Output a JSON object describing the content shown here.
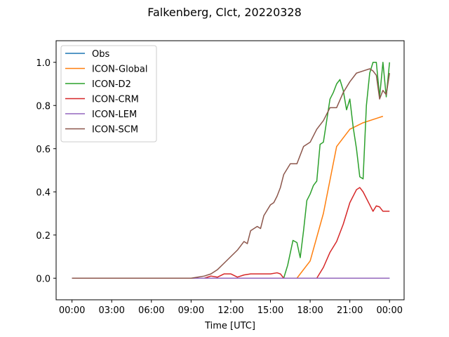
{
  "chart_data": {
    "type": "line",
    "title": "Falkenberg, Clct, 20220328",
    "xlabel": "Time [UTC]",
    "ylabel": "",
    "xlim_hours": [
      -1.2,
      25.1
    ],
    "ylim": [
      -0.1,
      1.1
    ],
    "x_ticks": [
      0,
      3,
      6,
      9,
      12,
      15,
      18,
      21,
      24
    ],
    "x_tick_labels": [
      "00:00",
      "03:00",
      "06:00",
      "09:00",
      "12:00",
      "15:00",
      "18:00",
      "21:00",
      "00:00"
    ],
    "y_ticks": [
      0.0,
      0.2,
      0.4,
      0.6,
      0.8,
      1.0
    ],
    "y_tick_labels": [
      "0.0",
      "0.2",
      "0.4",
      "0.6",
      "0.8",
      "1.0"
    ],
    "grid": false,
    "legend_position": "top-left",
    "series": [
      {
        "name": "Obs",
        "color": "#1f77b4",
        "points": [
          [
            0,
            0
          ],
          [
            24,
            0
          ]
        ]
      },
      {
        "name": "ICON-Global",
        "color": "#ff7f0e",
        "points": [
          [
            0,
            0
          ],
          [
            17.0,
            0
          ],
          [
            18.0,
            0.08
          ],
          [
            19.0,
            0.3
          ],
          [
            20.0,
            0.61
          ],
          [
            21.0,
            0.69
          ],
          [
            22.0,
            0.72
          ],
          [
            23.0,
            0.74
          ],
          [
            23.5,
            0.75
          ]
        ]
      },
      {
        "name": "ICON-D2",
        "color": "#2ca02c",
        "points": [
          [
            0,
            0
          ],
          [
            16.0,
            0
          ],
          [
            16.3,
            0.06
          ],
          [
            16.7,
            0.175
          ],
          [
            17.0,
            0.165
          ],
          [
            17.25,
            0.095
          ],
          [
            17.5,
            0.22
          ],
          [
            17.75,
            0.36
          ],
          [
            18.0,
            0.39
          ],
          [
            18.25,
            0.43
          ],
          [
            18.5,
            0.45
          ],
          [
            18.75,
            0.62
          ],
          [
            19.0,
            0.63
          ],
          [
            19.25,
            0.73
          ],
          [
            19.5,
            0.83
          ],
          [
            19.75,
            0.86
          ],
          [
            20.0,
            0.9
          ],
          [
            20.25,
            0.92
          ],
          [
            20.5,
            0.87
          ],
          [
            20.75,
            0.78
          ],
          [
            21.0,
            0.83
          ],
          [
            21.25,
            0.7
          ],
          [
            21.5,
            0.6
          ],
          [
            21.75,
            0.47
          ],
          [
            22.0,
            0.46
          ],
          [
            22.25,
            0.8
          ],
          [
            22.5,
            0.95
          ],
          [
            22.75,
            1.0
          ],
          [
            23.0,
            1.0
          ],
          [
            23.25,
            0.84
          ],
          [
            23.5,
            1.0
          ],
          [
            23.75,
            0.84
          ],
          [
            24.0,
            1.0
          ]
        ]
      },
      {
        "name": "ICON-CRM",
        "color": "#d62728",
        "points": [
          [
            0,
            0
          ],
          [
            10.0,
            0
          ],
          [
            10.5,
            0.01
          ],
          [
            11.0,
            0.005
          ],
          [
            11.5,
            0.02
          ],
          [
            12.0,
            0.02
          ],
          [
            12.5,
            0.005
          ],
          [
            13.0,
            0.015
          ],
          [
            13.5,
            0.02
          ],
          [
            14.0,
            0.02
          ],
          [
            14.5,
            0.02
          ],
          [
            15.0,
            0.02
          ],
          [
            15.5,
            0.025
          ],
          [
            15.75,
            0.02
          ],
          [
            16.0,
            0.0
          ],
          [
            18.5,
            0.0
          ],
          [
            19.0,
            0.05
          ],
          [
            19.5,
            0.12
          ],
          [
            20.0,
            0.17
          ],
          [
            20.5,
            0.25
          ],
          [
            21.0,
            0.35
          ],
          [
            21.5,
            0.41
          ],
          [
            21.75,
            0.42
          ],
          [
            22.0,
            0.4
          ],
          [
            22.5,
            0.34
          ],
          [
            22.75,
            0.31
          ],
          [
            23.0,
            0.335
          ],
          [
            23.25,
            0.33
          ],
          [
            23.5,
            0.31
          ],
          [
            24.0,
            0.31
          ]
        ]
      },
      {
        "name": "ICON-LEM",
        "color": "#9467bd",
        "points": [
          [
            0,
            0
          ],
          [
            24,
            0
          ]
        ]
      },
      {
        "name": "ICON-SCM",
        "color": "#8c564b",
        "points": [
          [
            0,
            0
          ],
          [
            9.0,
            0
          ],
          [
            9.5,
            0.005
          ],
          [
            10.0,
            0.01
          ],
          [
            10.5,
            0.02
          ],
          [
            11.0,
            0.04
          ],
          [
            11.5,
            0.07
          ],
          [
            12.0,
            0.1
          ],
          [
            12.5,
            0.13
          ],
          [
            13.0,
            0.17
          ],
          [
            13.25,
            0.16
          ],
          [
            13.5,
            0.22
          ],
          [
            14.0,
            0.24
          ],
          [
            14.25,
            0.23
          ],
          [
            14.5,
            0.29
          ],
          [
            15.0,
            0.34
          ],
          [
            15.25,
            0.35
          ],
          [
            15.5,
            0.38
          ],
          [
            15.75,
            0.42
          ],
          [
            16.0,
            0.48
          ],
          [
            16.5,
            0.53
          ],
          [
            17.0,
            0.53
          ],
          [
            17.5,
            0.61
          ],
          [
            18.0,
            0.63
          ],
          [
            18.5,
            0.69
          ],
          [
            19.0,
            0.73
          ],
          [
            19.5,
            0.79
          ],
          [
            20.0,
            0.79
          ],
          [
            20.5,
            0.86
          ],
          [
            21.0,
            0.91
          ],
          [
            21.5,
            0.95
          ],
          [
            22.0,
            0.96
          ],
          [
            22.5,
            0.97
          ],
          [
            22.75,
            0.96
          ],
          [
            23.0,
            0.94
          ],
          [
            23.25,
            0.83
          ],
          [
            23.5,
            0.87
          ],
          [
            23.75,
            0.85
          ],
          [
            24.0,
            0.95
          ]
        ]
      }
    ]
  }
}
